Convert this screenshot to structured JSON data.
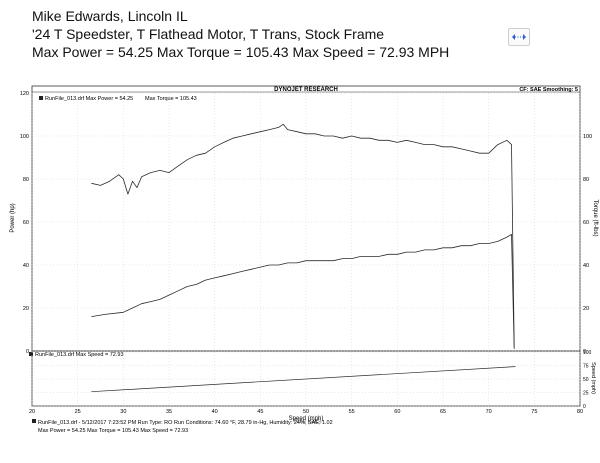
{
  "header": {
    "line1": "Mike Edwards, Lincoln IL",
    "line2": "'24 T Speedster, T Flathead Motor, T Trans, Stock Frame",
    "line3": "Max Power = 54.25   Max Torque = 105.43   Max Speed = 72.93 MPH"
  },
  "icons": {
    "resize": "resize-arrows-icon"
  },
  "colors": {
    "line": "#2b2b2b",
    "grid": "#c8c8c8",
    "frame": "#333333"
  },
  "chart_data": [
    {
      "type": "line",
      "title": "DYNOJET RESEARCH",
      "corner_label": "CF: SAE  Smoothing: 5",
      "legend": [
        "RunFile_013.drf Max Power = 54.25",
        "Max Torque = 105.43"
      ],
      "xlabel": "Speed (mph)",
      "ylabel_left": "Power (hp)",
      "ylabel_right": "Torque (ft-lbs)",
      "xlim": [
        20,
        80
      ],
      "ylim": [
        0,
        120
      ],
      "yticks_left": [
        0,
        20,
        40,
        60,
        80,
        100,
        120
      ],
      "yticks_right": [
        0,
        20,
        40,
        60,
        80,
        100
      ],
      "grid": true,
      "series": [
        {
          "name": "Max Torque = 105.43",
          "x": [
            26.5,
            27.5,
            28.5,
            29.5,
            30,
            30.5,
            31,
            31.5,
            32,
            33,
            34,
            35,
            36,
            37,
            38,
            39,
            40,
            41,
            42,
            43,
            44,
            45,
            46,
            47,
            47.5,
            48,
            49,
            50,
            51,
            52,
            53,
            54,
            55,
            56,
            57,
            58,
            59,
            60,
            61,
            62,
            63,
            64,
            65,
            66,
            67,
            68,
            69,
            70,
            71,
            72,
            72.5,
            72.8
          ],
          "y": [
            78,
            77,
            79,
            82,
            80,
            73,
            79,
            76,
            81,
            83,
            84,
            83,
            86,
            89,
            91,
            92,
            95,
            97,
            99,
            100,
            101,
            102,
            103,
            104,
            105.43,
            103,
            102,
            101,
            101,
            100,
            100,
            99,
            100,
            99,
            99,
            98,
            98,
            97,
            98,
            97,
            96,
            96,
            95,
            95,
            94,
            93,
            92,
            92,
            96,
            98,
            96,
            2
          ]
        },
        {
          "name": "Max Power = 54.25",
          "x": [
            26.5,
            28,
            30,
            31,
            32,
            33,
            34,
            35,
            36,
            37,
            38,
            39,
            40,
            41,
            42,
            43,
            44,
            45,
            46,
            47,
            48,
            49,
            50,
            51,
            52,
            53,
            54,
            55,
            56,
            57,
            58,
            59,
            60,
            61,
            62,
            63,
            64,
            65,
            66,
            67,
            68,
            69,
            70,
            71,
            72,
            72.5,
            72.8
          ],
          "y": [
            16,
            17,
            18,
            20,
            22,
            23,
            24,
            26,
            28,
            30,
            31,
            33,
            34,
            35,
            36,
            37,
            38,
            39,
            40,
            40,
            41,
            41,
            42,
            42,
            42,
            42,
            43,
            43,
            44,
            44,
            44,
            45,
            45,
            46,
            46,
            47,
            47,
            48,
            48,
            49,
            49,
            50,
            50,
            51,
            53,
            54.25,
            1
          ]
        }
      ]
    },
    {
      "type": "line",
      "legend": [
        "RunFile_013.drf Max Speed = 72.93"
      ],
      "ylabel_right": "Speed (mph)",
      "xlim": [
        20,
        80
      ],
      "ylim": [
        0,
        100
      ],
      "yticks_right": [
        0,
        25,
        50,
        75,
        100
      ],
      "xticks": [
        20,
        25,
        30,
        35,
        40,
        45,
        50,
        55,
        60,
        65,
        70,
        75,
        80
      ],
      "xlabel": "Time (sec)",
      "series": [
        {
          "name": "Max Speed = 72.93",
          "x": [
            26.5,
            72.93
          ],
          "y": [
            26.5,
            72.93
          ]
        }
      ]
    }
  ],
  "footer": {
    "line1": "RunFile_013.drf - 5/12/2017 7:23:52 PM  Run Type: RO  Run Conditions: 74.60 °F, 28.79 in-Hg,  Humidity:  24%, SAE: 1.02",
    "line2": "Max Power = 54.25  Max Torque = 105.43  Max Speed = 72.93"
  }
}
